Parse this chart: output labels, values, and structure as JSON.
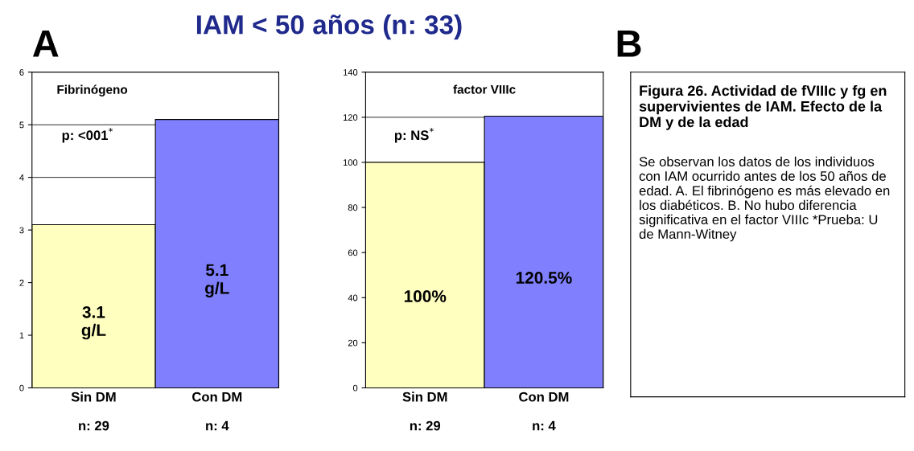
{
  "chart_data": [
    {
      "type": "bar",
      "title": "Fibrinógeno",
      "categories": [
        "Sin DM\n\nn: 29",
        "Con DM\n\nn: 4"
      ],
      "series": [
        {
          "colors": [
            "#ffffc0",
            "#8080ff"
          ],
          "values": [
            3.1,
            5.1
          ],
          "value_labels": [
            "3.1\ng/L",
            "5.1\ng/L"
          ]
        }
      ],
      "ylim": [
        0,
        6
      ],
      "yticks": [
        0,
        1,
        2,
        3,
        4,
        5,
        6
      ],
      "grid": "y",
      "annotations": [
        "A",
        "IAM < 50 años (n: 33)",
        "p: <001$^{*}$"
      ]
    },
    {
      "type": "bar",
      "title": "factor VIIIc",
      "categories": [
        "Sin DM\n\nn: 29",
        "Con DM\n\nn: 4"
      ],
      "series": [
        {
          "colors": [
            "#ffffc0",
            "#8080ff"
          ],
          "values": [
            100,
            120.5
          ],
          "value_labels": [
            "100%",
            "120.5%"
          ]
        }
      ],
      "ylim": [
        0,
        140
      ],
      "yticks": [
        0,
        20,
        40,
        60,
        80,
        100,
        120,
        140
      ],
      "grid": "y",
      "annotations": [
        "B",
        "p: NS$^{*}$"
      ]
    },
    {
      "type": "other",
      "annotations": [
        "Figura 26. Actividad de fVIIIc y fg en supervivientes de IAM. Efecto de la DM y de la edad",
        "Se observan los datos de los individuos con IAM ocurrido antes de los 50 años de edad. A. El fibrinógeno es más elevado en los diabéticos. B. No hubo diferencia significativa en el factor VIIIc *Prueba: U de Mann-Witney"
      ]
    }
  ]
}
